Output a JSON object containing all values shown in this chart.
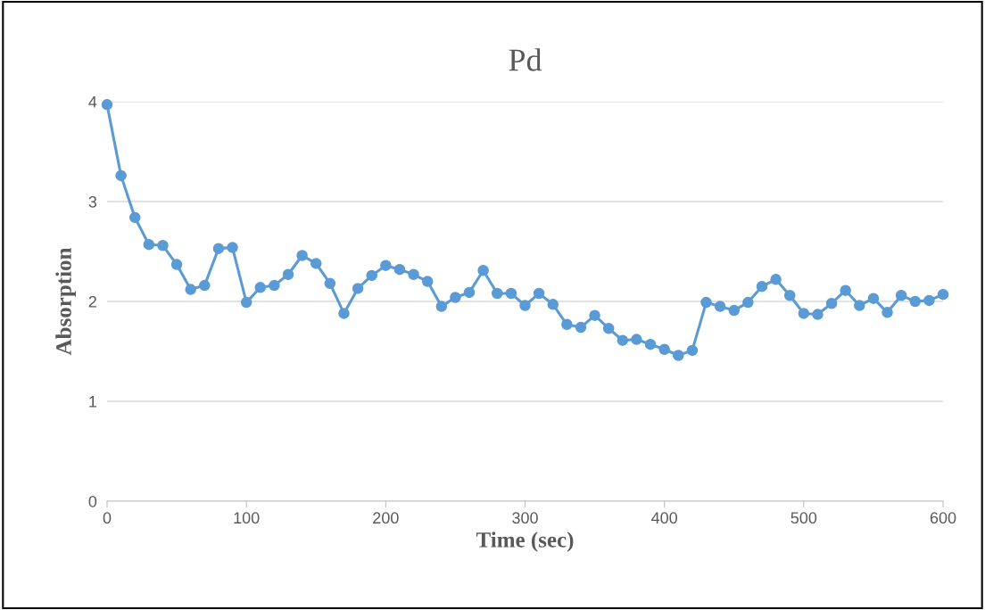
{
  "chart_data": {
    "type": "line",
    "title": "Pd",
    "xlabel": "Time (sec)",
    "ylabel": "Absorption",
    "x": [
      0,
      10,
      20,
      30,
      40,
      50,
      60,
      70,
      80,
      90,
      100,
      110,
      120,
      130,
      140,
      150,
      160,
      170,
      180,
      190,
      200,
      210,
      220,
      230,
      240,
      250,
      260,
      270,
      280,
      290,
      300,
      310,
      320,
      330,
      340,
      350,
      360,
      370,
      380,
      390,
      400,
      410,
      420,
      430,
      440,
      450,
      460,
      470,
      480,
      490,
      500,
      510,
      520,
      530,
      540,
      550,
      560,
      570,
      580,
      590,
      600
    ],
    "series": [
      {
        "color": "#5b9bd5",
        "values": [
          3.97,
          3.26,
          2.84,
          2.57,
          2.56,
          2.37,
          2.12,
          2.16,
          2.53,
          2.54,
          1.99,
          2.14,
          2.16,
          2.27,
          2.46,
          2.38,
          2.18,
          1.88,
          2.13,
          2.26,
          2.36,
          2.32,
          2.27,
          2.2,
          1.95,
          2.04,
          2.09,
          2.31,
          2.08,
          2.08,
          1.96,
          2.08,
          1.97,
          1.77,
          1.74,
          1.86,
          1.73,
          1.61,
          1.62,
          1.57,
          1.52,
          1.46,
          1.51,
          1.99,
          1.95,
          1.91,
          1.99,
          2.15,
          2.22,
          2.06,
          1.88,
          1.87,
          1.98,
          2.11,
          1.96,
          2.03,
          1.89,
          2.06,
          2.0,
          2.01,
          2.07
        ]
      }
    ],
    "xlim": [
      0,
      600
    ],
    "xticks": [
      0,
      100,
      200,
      300,
      400,
      500,
      600
    ],
    "ylim": [
      0,
      4
    ],
    "yticks": [
      0,
      1,
      2,
      3,
      4
    ],
    "grid": "y",
    "marker": "circle",
    "line_style": "solid",
    "legend": false
  }
}
